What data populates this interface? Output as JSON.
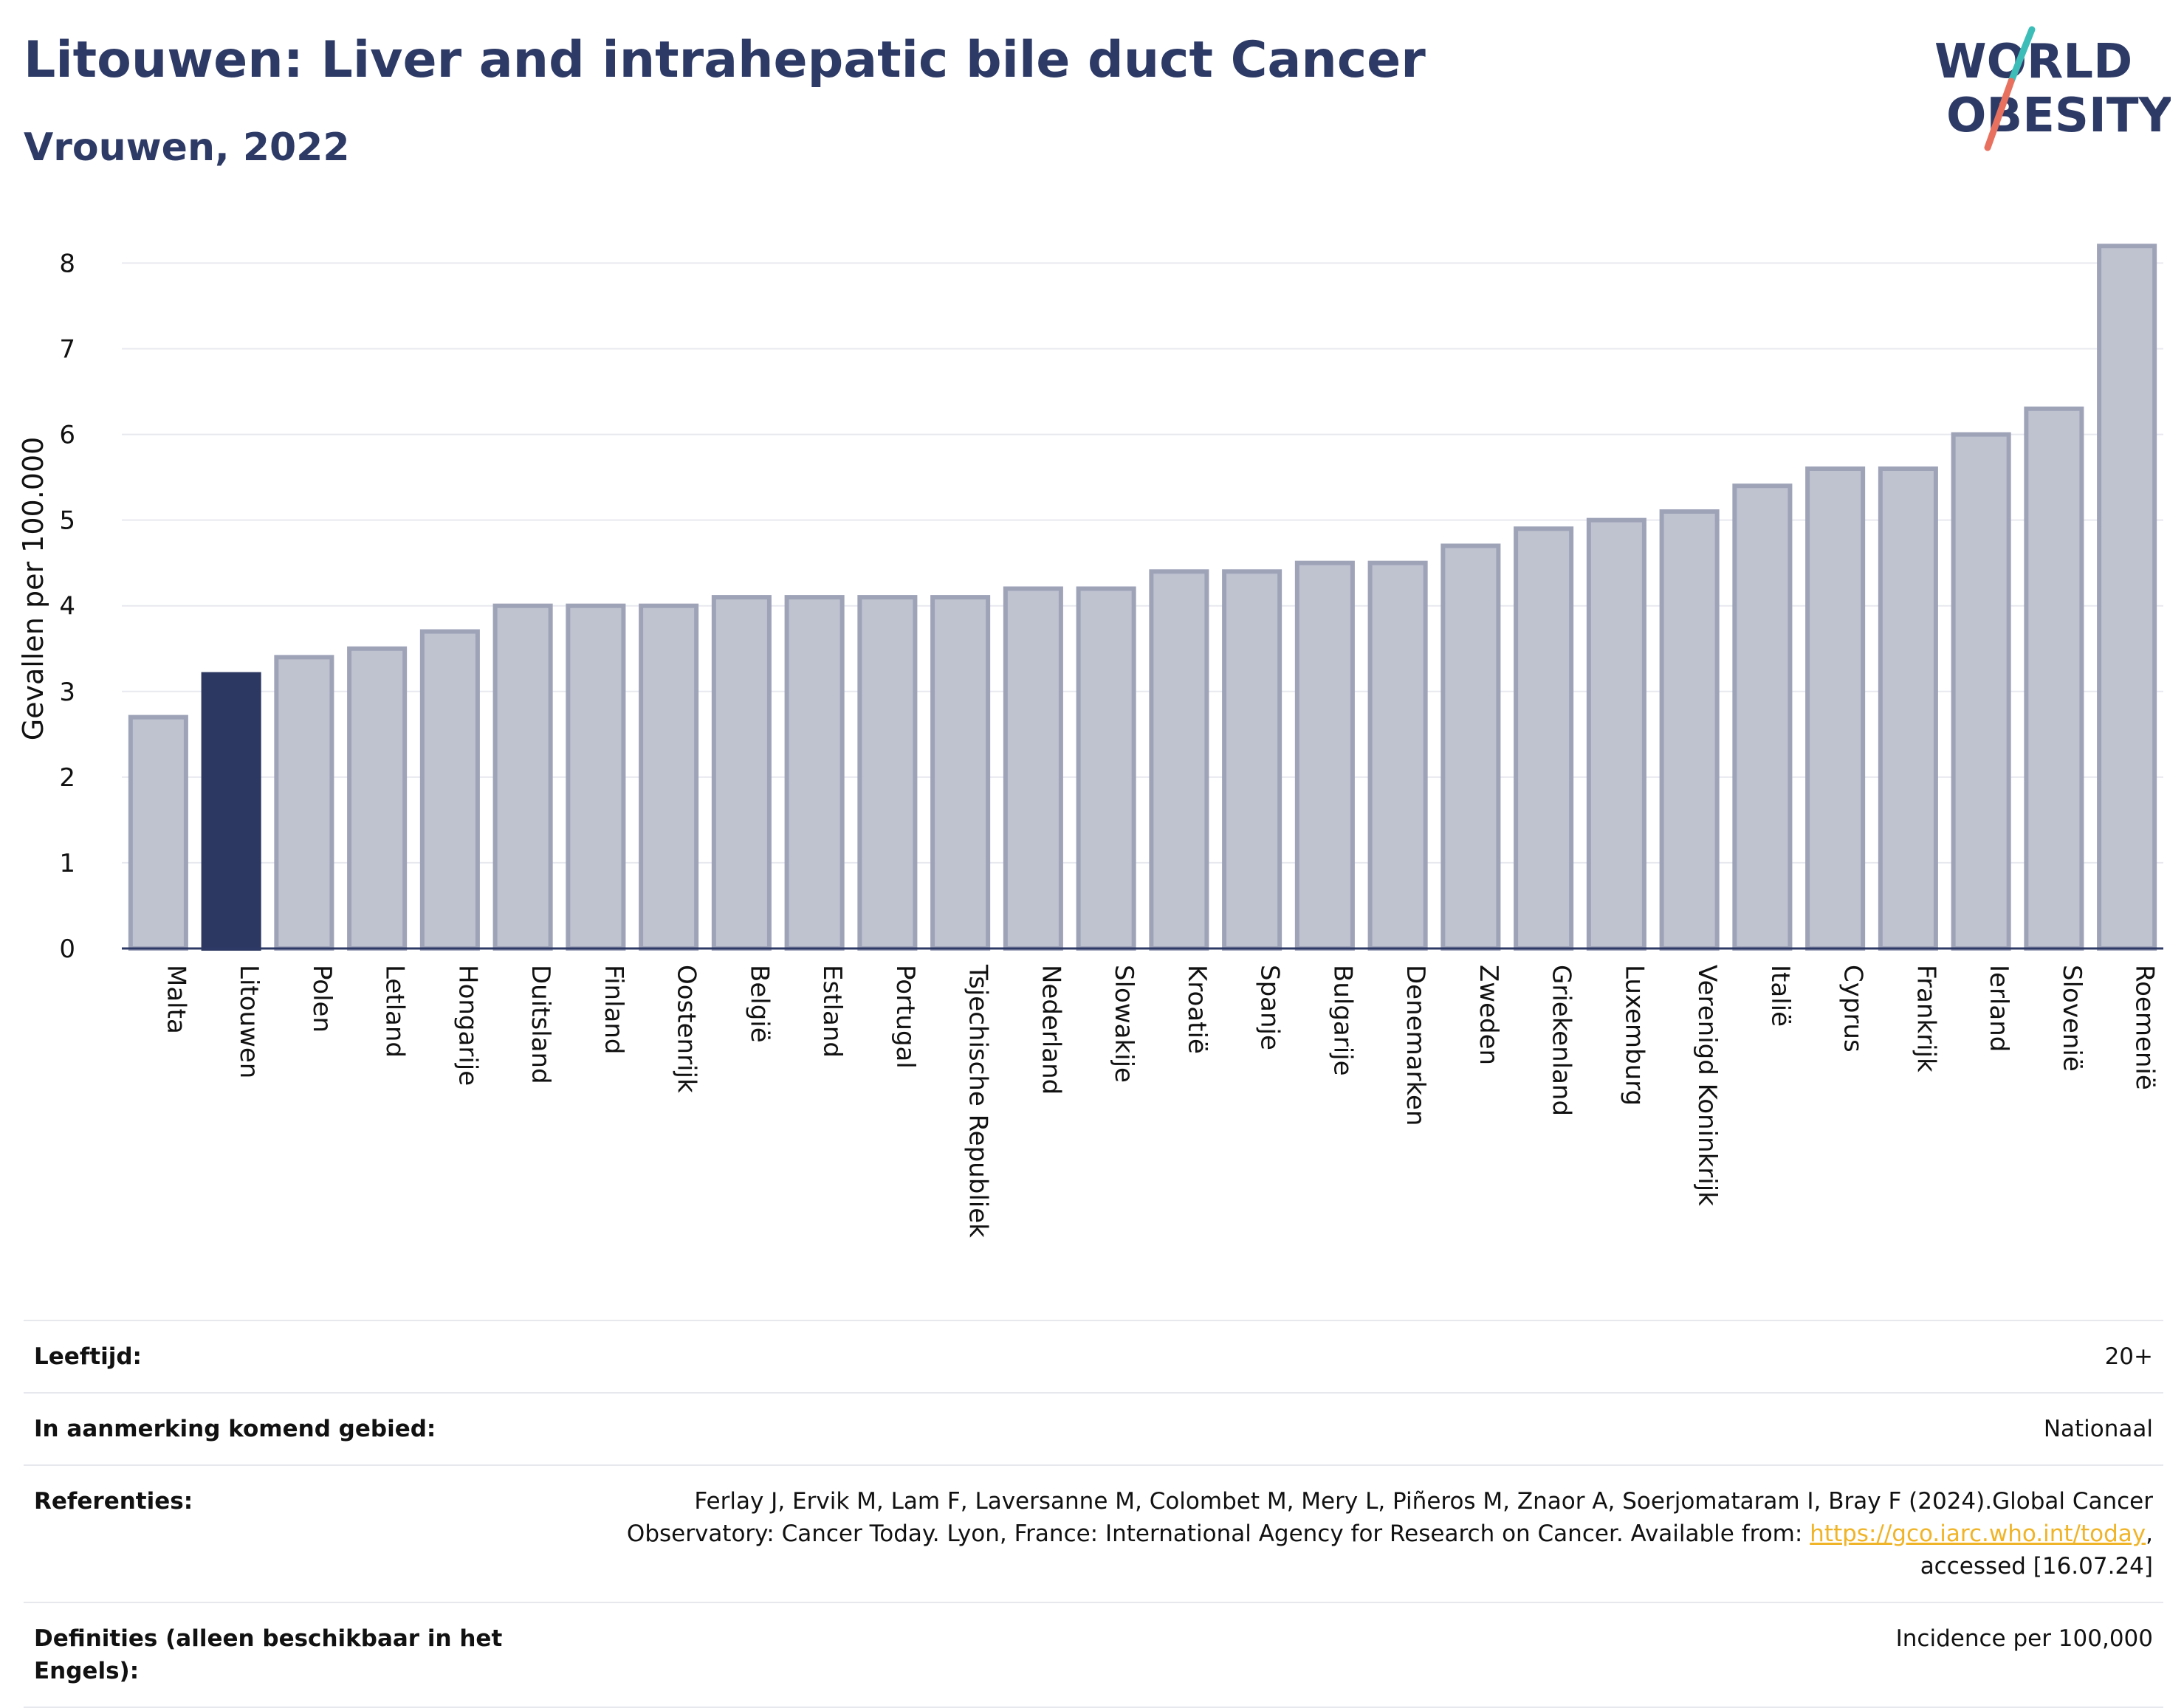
{
  "header": {
    "title": "Litouwen: Liver and intrahepatic bile duct Cancer",
    "subtitle": "Vrouwen, 2022"
  },
  "logo": {
    "line1": "WORLD",
    "line2": "OBESITY"
  },
  "colors": {
    "highlight": "#2d3862",
    "bar_fill": "#bfc2cf",
    "bar_stroke": "#9ea3b8",
    "title": "#2d3a66",
    "logo_teal": "#3dbdb8",
    "logo_coral": "#e8705e",
    "link": "#f0b428"
  },
  "chart_data": {
    "type": "bar",
    "ylabel": "Gevallen per 100.000",
    "xlabel": "",
    "ylim": [
      0,
      8.4
    ],
    "yticks": [
      "0",
      "1",
      "2",
      "3",
      "4",
      "5",
      "6",
      "7",
      "8"
    ],
    "grid": true,
    "highlight": "Litouwen",
    "categories": [
      "Malta",
      "Litouwen",
      "Polen",
      "Letland",
      "Hongarije",
      "Duitsland",
      "Finland",
      "Oostenrijk",
      "België",
      "Estland",
      "Portugal",
      "Tsjechische Republiek",
      "Nederland",
      "Slowakije",
      "Kroatië",
      "Spanje",
      "Bulgarije",
      "Denemarken",
      "Zweden",
      "Griekenland",
      "Luxemburg",
      "Verenigd Koninkrijk",
      "Italië",
      "Cyprus",
      "Frankrijk",
      "Ierland",
      "Slovenië",
      "Roemenië"
    ],
    "values": [
      2.7,
      3.2,
      3.4,
      3.5,
      3.7,
      4.0,
      4.0,
      4.0,
      4.1,
      4.1,
      4.1,
      4.1,
      4.2,
      4.2,
      4.4,
      4.4,
      4.5,
      4.5,
      4.7,
      4.9,
      5.0,
      5.1,
      5.4,
      5.6,
      5.6,
      6.0,
      6.3,
      8.2
    ]
  },
  "info": {
    "age": {
      "label": "Leeftijd:",
      "value": "20+"
    },
    "area": {
      "label": "In aanmerking komend gebied:",
      "value": "Nationaal"
    },
    "refs": {
      "label": "Referenties:",
      "text1": "Ferlay J, Ervik M, Lam F, Laversanne M, Colombet M, Mery L, Piñeros M, Znaor A, Soerjomataram I, Bray F (2024).Global Cancer Observatory: Cancer Today. Lyon, France: International Agency for Research on Cancer. Available from: ",
      "link": "https://gco.iarc.who.int/today",
      "text2": ", accessed [16.07.24]"
    },
    "defs": {
      "label": "Definities (alleen beschikbaar in het Engels):",
      "value": "Incidence per 100,000"
    }
  }
}
